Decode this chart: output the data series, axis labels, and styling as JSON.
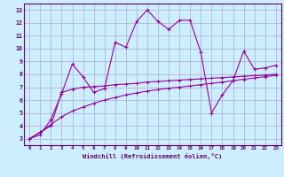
{
  "xlabel": "Windchill (Refroidissement éolien,°C)",
  "x_values": [
    0,
    1,
    2,
    3,
    4,
    5,
    6,
    7,
    8,
    9,
    10,
    11,
    12,
    13,
    14,
    15,
    16,
    17,
    18,
    19,
    20,
    21,
    22,
    23
  ],
  "line1_y": [
    3.0,
    3.3,
    4.5,
    6.5,
    8.8,
    7.8,
    6.6,
    6.9,
    10.5,
    10.1,
    12.1,
    13.0,
    12.1,
    11.5,
    12.2,
    12.2,
    9.7,
    5.0,
    6.4,
    7.5,
    9.8,
    8.4,
    8.5,
    8.7
  ],
  "line2_y": [
    3.0,
    3.5,
    4.0,
    6.6,
    6.85,
    7.0,
    7.05,
    7.1,
    7.2,
    7.25,
    7.3,
    7.4,
    7.45,
    7.5,
    7.55,
    7.6,
    7.65,
    7.7,
    7.75,
    7.8,
    7.85,
    7.9,
    7.95,
    8.0
  ],
  "line3_y": [
    3.0,
    3.5,
    4.1,
    4.7,
    5.15,
    5.45,
    5.75,
    6.0,
    6.2,
    6.4,
    6.55,
    6.7,
    6.82,
    6.92,
    7.0,
    7.1,
    7.2,
    7.3,
    7.4,
    7.5,
    7.62,
    7.72,
    7.82,
    7.92
  ],
  "line_color": "#990099",
  "bg_color": "#cceeff",
  "grid_color": "#aaaacc",
  "xlim": [
    -0.5,
    23.5
  ],
  "ylim": [
    2.5,
    13.5
  ],
  "yticks": [
    3,
    4,
    5,
    6,
    7,
    8,
    9,
    10,
    11,
    12,
    13
  ],
  "xticks": [
    0,
    1,
    2,
    3,
    4,
    5,
    6,
    7,
    8,
    9,
    10,
    11,
    12,
    13,
    14,
    15,
    16,
    17,
    18,
    19,
    20,
    21,
    22,
    23
  ]
}
